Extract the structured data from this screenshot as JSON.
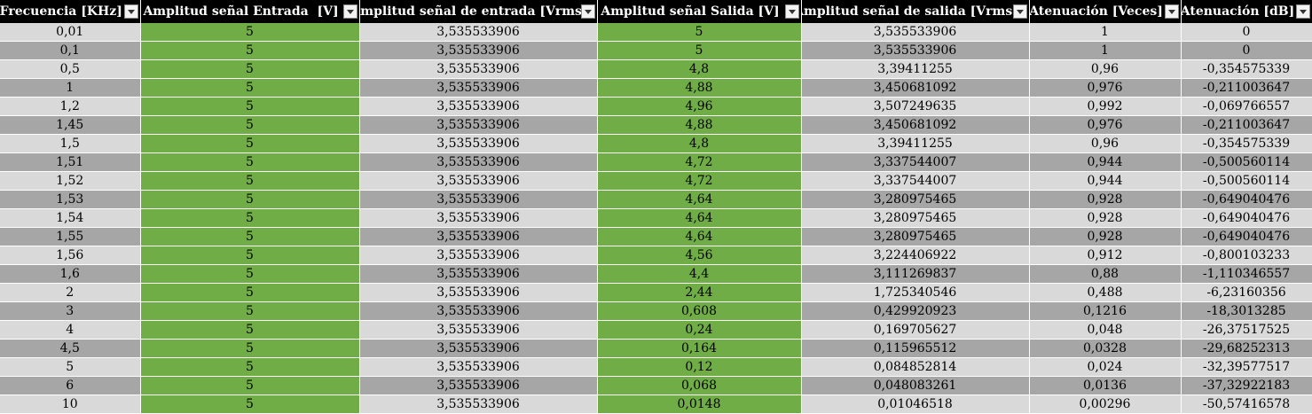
{
  "columns": [
    "Frecuencia [KHz]",
    "Amplitud señal Entrada  [V]",
    "Amplitud señal de entrada [Vrms]",
    "Amplitud señal Salida [V]",
    "Amplitud señal de salida [Vrms]",
    "Atenuación [Veces]",
    "Atenuación [dB]"
  ],
  "filter_icon": "dropdown-arrow-icon",
  "colors": {
    "header_bg": "#000000",
    "header_text": "#ffffff",
    "row_light": "#d9d9d9",
    "row_dark": "#a6a6a6",
    "highlight_green": "#70ad47"
  },
  "rows": [
    [
      "0,01",
      "5",
      "3,535533906",
      "5",
      "3,535533906",
      "1",
      "0"
    ],
    [
      "0,1",
      "5",
      "3,535533906",
      "5",
      "3,535533906",
      "1",
      "0"
    ],
    [
      "0,5",
      "5",
      "3,535533906",
      "4,8",
      "3,39411255",
      "0,96",
      "-0,354575339"
    ],
    [
      "1",
      "5",
      "3,535533906",
      "4,88",
      "3,450681092",
      "0,976",
      "-0,211003647"
    ],
    [
      "1,2",
      "5",
      "3,535533906",
      "4,96",
      "3,507249635",
      "0,992",
      "-0,069766557"
    ],
    [
      "1,45",
      "5",
      "3,535533906",
      "4,88",
      "3,450681092",
      "0,976",
      "-0,211003647"
    ],
    [
      "1,5",
      "5",
      "3,535533906",
      "4,8",
      "3,39411255",
      "0,96",
      "-0,354575339"
    ],
    [
      "1,51",
      "5",
      "3,535533906",
      "4,72",
      "3,337544007",
      "0,944",
      "-0,500560114"
    ],
    [
      "1,52",
      "5",
      "3,535533906",
      "4,72",
      "3,337544007",
      "0,944",
      "-0,500560114"
    ],
    [
      "1,53",
      "5",
      "3,535533906",
      "4,64",
      "3,280975465",
      "0,928",
      "-0,649040476"
    ],
    [
      "1,54",
      "5",
      "3,535533906",
      "4,64",
      "3,280975465",
      "0,928",
      "-0,649040476"
    ],
    [
      "1,55",
      "5",
      "3,535533906",
      "4,64",
      "3,280975465",
      "0,928",
      "-0,649040476"
    ],
    [
      "1,56",
      "5",
      "3,535533906",
      "4,56",
      "3,224406922",
      "0,912",
      "-0,800103233"
    ],
    [
      "1,6",
      "5",
      "3,535533906",
      "4,4",
      "3,111269837",
      "0,88",
      "-1,110346557"
    ],
    [
      "2",
      "5",
      "3,535533906",
      "2,44",
      "1,725340546",
      "0,488",
      "-6,23160356"
    ],
    [
      "3",
      "5",
      "3,535533906",
      "0,608",
      "0,429920923",
      "0,1216",
      "-18,3013285"
    ],
    [
      "4",
      "5",
      "3,535533906",
      "0,24",
      "0,169705627",
      "0,048",
      "-26,37517525"
    ],
    [
      "4,5",
      "5",
      "3,535533906",
      "0,164",
      "0,115965512",
      "0,0328",
      "-29,68252313"
    ],
    [
      "5",
      "5",
      "3,535533906",
      "0,12",
      "0,084852814",
      "0,024",
      "-32,39577517"
    ],
    [
      "6",
      "5",
      "3,535533906",
      "0,068",
      "0,048083261",
      "0,0136",
      "-37,32922183"
    ],
    [
      "10",
      "5",
      "3,535533906",
      "0,0148",
      "0,01046518",
      "0,00296",
      "-50,57416578"
    ]
  ]
}
